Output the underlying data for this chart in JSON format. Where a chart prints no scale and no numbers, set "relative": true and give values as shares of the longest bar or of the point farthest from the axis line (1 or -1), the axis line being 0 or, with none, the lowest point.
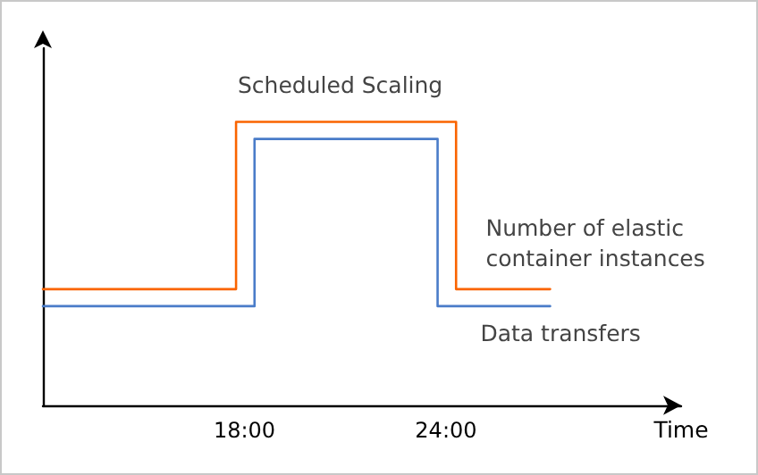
{
  "chart_data": {
    "type": "step",
    "title": "Scheduled Scaling",
    "xlabel": "Time",
    "relative": true,
    "xlim": [
      12,
      31
    ],
    "xticks": [
      {
        "value": 18,
        "label": "18:00"
      },
      {
        "value": 24,
        "label": "24:00"
      }
    ],
    "series": [
      {
        "name": "Number of elastic container instances",
        "color": "#fa6400",
        "x": [
          12,
          17.75,
          24.3,
          27.1
        ],
        "values": [
          0.41,
          1,
          0.41,
          0.41
        ]
      },
      {
        "name": "Data transfers",
        "color": "#4a7cc9",
        "x": [
          12,
          18.3,
          23.75,
          27.1
        ],
        "values": [
          0.35,
          0.94,
          0.35,
          0.35
        ]
      }
    ],
    "grid": false,
    "legend": false,
    "marker": "none",
    "line_style": "solid"
  }
}
